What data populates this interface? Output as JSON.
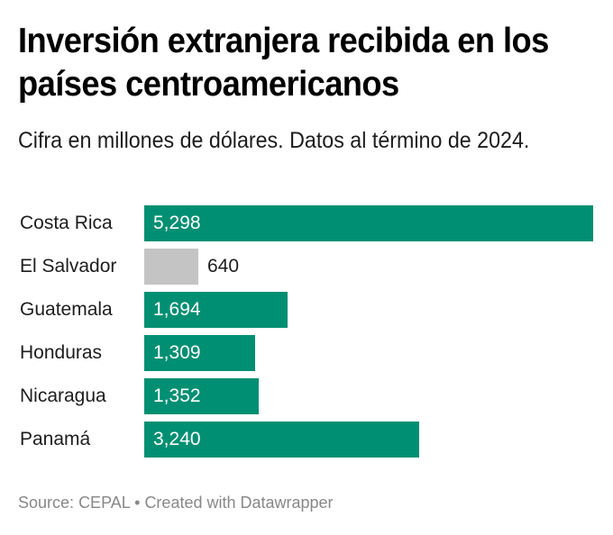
{
  "header": {
    "title": "Inversión extranjera recibida en los países centroamericanos",
    "subtitle": "Cifra en millones de dólares. Datos al término de 2024."
  },
  "footer": {
    "source_label": "Source:",
    "source": "CEPAL",
    "separator": "•",
    "credit": "Created with Datawrapper",
    "text": "Source: CEPAL • Created with Datawrapper"
  },
  "colors": {
    "primary_bar": "#008f72",
    "highlight_bar": "#c4c4c4",
    "label_inside": "#ffffff",
    "label_outside": "#1d1d1d",
    "footer_text": "#888888"
  },
  "chart_data": {
    "type": "bar",
    "orientation": "horizontal",
    "title": "Inversión extranjera recibida en los países centroamericanos",
    "subtitle": "Cifra en millones de dólares. Datos al término de 2024.",
    "xlabel": "",
    "ylabel": "",
    "unit": "millones de dólares",
    "xlim": [
      0,
      5298
    ],
    "grid": false,
    "legend": "none",
    "categories": [
      "Costa Rica",
      "El Salvador",
      "Guatemala",
      "Honduras",
      "Nicaragua",
      "Panamá"
    ],
    "values": [
      5298,
      640,
      1694,
      1309,
      1352,
      3240
    ],
    "value_labels": [
      "5,298",
      "640",
      "1,694",
      "1,309",
      "1,352",
      "3,240"
    ],
    "bar_colors": [
      "#008f72",
      "#c4c4c4",
      "#008f72",
      "#008f72",
      "#008f72",
      "#008f72"
    ]
  }
}
